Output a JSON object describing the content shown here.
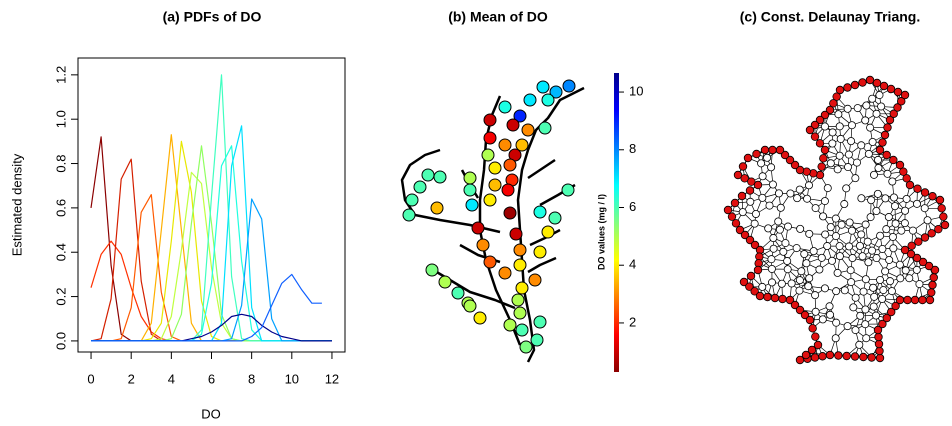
{
  "chart_data": [
    {
      "type": "line",
      "title": "(a) PDFs of DO",
      "x_label": "DO",
      "y_label": "Estimated density",
      "x": [
        0,
        0.5,
        1,
        1.5,
        2,
        2.5,
        3,
        3.5,
        4,
        4.5,
        5,
        5.5,
        6,
        6.5,
        7,
        7.5,
        8,
        8.5,
        9,
        9.5,
        10,
        10.5,
        11,
        11.5,
        12
      ],
      "series": [
        {
          "color": "#8b0000",
          "values": [
            0.6,
            0.92,
            0.34,
            0.03,
            0,
            0,
            0,
            0,
            0,
            0,
            0,
            0,
            0,
            0,
            0,
            0,
            0,
            0,
            0,
            0,
            0,
            0,
            0,
            0,
            0
          ]
        },
        {
          "color": "#ff3000",
          "values": [
            0.24,
            0.39,
            0.45,
            0.39,
            0.24,
            0.11,
            0.04,
            0.01,
            0,
            0,
            0,
            0,
            0,
            0,
            0,
            0,
            0,
            0,
            0,
            0,
            0,
            0,
            0,
            0,
            0
          ]
        },
        {
          "color": "#d42000",
          "values": [
            0,
            0.01,
            0.19,
            0.73,
            0.82,
            0.27,
            0.03,
            0,
            0,
            0,
            0,
            0,
            0,
            0,
            0,
            0,
            0,
            0,
            0,
            0,
            0,
            0,
            0,
            0,
            0
          ]
        },
        {
          "color": "#ff5a00",
          "values": [
            0,
            0,
            0,
            0.01,
            0.15,
            0.58,
            0.66,
            0.22,
            0.02,
            0,
            0,
            0,
            0,
            0,
            0,
            0,
            0,
            0,
            0,
            0,
            0,
            0,
            0,
            0,
            0
          ]
        },
        {
          "color": "#ffb000",
          "values": [
            0,
            0,
            0,
            0,
            0,
            0,
            0.08,
            0.5,
            0.93,
            0.5,
            0.08,
            0,
            0,
            0,
            0,
            0,
            0,
            0,
            0,
            0,
            0,
            0,
            0,
            0,
            0
          ]
        },
        {
          "color": "#e8e800",
          "values": [
            0,
            0,
            0,
            0,
            0,
            0,
            0.01,
            0.08,
            0.45,
            0.9,
            0.67,
            0.18,
            0.02,
            0,
            0,
            0,
            0,
            0,
            0,
            0,
            0,
            0,
            0,
            0,
            0
          ]
        },
        {
          "color": "#c0ff40",
          "values": [
            0,
            0,
            0,
            0,
            0,
            0,
            0,
            0.01,
            0.11,
            0.41,
            0.76,
            0.71,
            0.33,
            0.08,
            0.01,
            0,
            0,
            0,
            0,
            0,
            0,
            0,
            0,
            0,
            0
          ]
        },
        {
          "color": "#90ff60",
          "values": [
            0,
            0,
            0,
            0,
            0,
            0,
            0,
            0,
            0.01,
            0.12,
            0.53,
            0.88,
            0.53,
            0.12,
            0.01,
            0,
            0,
            0,
            0,
            0,
            0,
            0,
            0,
            0,
            0
          ]
        },
        {
          "color": "#40ffc0",
          "values": [
            0,
            0,
            0,
            0,
            0,
            0,
            0,
            0,
            0,
            0,
            0,
            0.05,
            0.65,
            1.2,
            0.29,
            0.01,
            0,
            0,
            0,
            0,
            0,
            0,
            0,
            0,
            0
          ]
        },
        {
          "color": "#20ffe0",
          "values": [
            0,
            0,
            0,
            0,
            0,
            0,
            0,
            0,
            0,
            0,
            0,
            0.03,
            0.26,
            0.79,
            0.88,
            0.36,
            0.05,
            0,
            0,
            0,
            0,
            0,
            0,
            0,
            0
          ]
        },
        {
          "color": "#00e0ff",
          "values": [
            0,
            0,
            0,
            0,
            0,
            0,
            0,
            0,
            0,
            0,
            0,
            0,
            0,
            0.08,
            0.79,
            0.97,
            0.15,
            0,
            0,
            0,
            0,
            0,
            0,
            0,
            0
          ]
        },
        {
          "color": "#00a0ff",
          "values": [
            0,
            0,
            0,
            0,
            0,
            0,
            0,
            0,
            0,
            0,
            0,
            0,
            0,
            0,
            0.01,
            0.16,
            0.64,
            0.55,
            0.1,
            0,
            0,
            0,
            0,
            0,
            0
          ]
        },
        {
          "color": "#00008b",
          "values": [
            0,
            0,
            0,
            0,
            0,
            0,
            0,
            0,
            0,
            0,
            0.01,
            0.02,
            0.04,
            0.07,
            0.11,
            0.12,
            0.11,
            0.07,
            0.04,
            0.02,
            0.01,
            0,
            0,
            0,
            0
          ]
        },
        {
          "color": "#1060ff",
          "values": [
            0,
            0,
            0,
            0,
            0,
            0,
            0,
            0,
            0,
            0,
            0,
            0,
            0,
            0,
            0,
            0,
            0.02,
            0.06,
            0.16,
            0.26,
            0.3,
            0.23,
            0.17,
            0.17,
            null
          ]
        }
      ],
      "xlim": [
        -0.65,
        12.65
      ],
      "ylim": [
        -0.05,
        1.276
      ],
      "xticks": [
        0,
        2,
        4,
        6,
        8,
        10,
        12
      ],
      "yticks": [
        {
          "value": 0,
          "label": "0.0"
        },
        0.2,
        0.4,
        0.6,
        0.8,
        {
          "value": 1,
          "label": "1.0"
        },
        1.2
      ]
    },
    {
      "type": "map",
      "title": "(b) Mean of DO",
      "values": [
        7,
        7.5,
        8,
        7,
        6.5,
        6.5,
        9,
        1,
        3,
        6,
        1,
        1.5,
        3,
        3.5,
        1,
        5,
        4,
        2.5,
        3.5,
        2,
        5,
        6,
        7,
        4,
        1.5,
        0.5,
        6,
        6,
        6,
        6,
        6,
        3.5,
        1,
        1,
        6.5,
        6,
        4,
        6,
        3,
        3,
        4,
        2.5,
        3,
        5.5,
        5,
        6,
        5,
        4,
        3,
        4,
        5,
        5,
        6,
        6,
        5,
        6,
        5.5,
        4,
        5
      ],
      "colorbar": {
        "label": "DO values (mg / l)",
        "lim": [
          0.3,
          10.66
        ],
        "ticks": [
          2,
          4,
          6,
          8,
          10
        ],
        "colormap": [
          "#8b0000",
          "#ff0000",
          "#ff8000",
          "#ffff00",
          "#80ff80",
          "#00ffff",
          "#0080ff",
          "#0000ff",
          "#00008b"
        ]
      }
    }
  ],
  "diagram": {
    "title": "(c) Const. Delaunay Triang."
  }
}
